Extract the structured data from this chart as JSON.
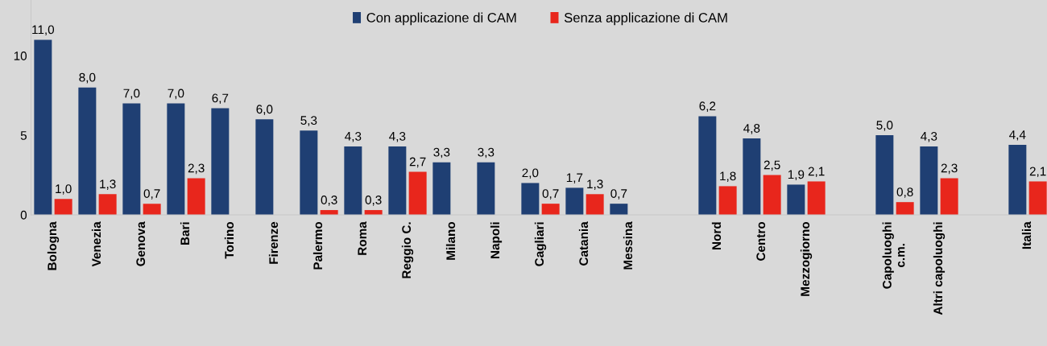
{
  "chart_data": {
    "type": "bar",
    "categories": [
      "Bologna",
      "Venezia",
      "Genova",
      "Bari",
      "Torino",
      "Firenze",
      "Palermo",
      "Roma",
      "Reggio C.",
      "Milano",
      "Napoli",
      "Cagliari",
      "Catania",
      "Messina",
      null,
      "Nord",
      "Centro",
      "Mezzogiorno",
      null,
      "Capoluoghi\nc.m.",
      "Altri capoluoghi",
      null,
      "Italia"
    ],
    "series": [
      {
        "name": "Con applicazione di CAM",
        "color": "#1f3f73",
        "values": [
          11.0,
          8.0,
          7.0,
          7.0,
          6.7,
          6.0,
          5.3,
          4.3,
          4.3,
          3.3,
          3.3,
          2.0,
          1.7,
          0.7,
          null,
          6.2,
          4.8,
          1.9,
          null,
          5.0,
          4.3,
          null,
          4.4
        ],
        "value_labels": [
          "11,0",
          "8,0",
          "7,0",
          "7,0",
          "6,7",
          "6,0",
          "5,3",
          "4,3",
          "4,3",
          "3,3",
          "3,3",
          "2,0",
          "1,7",
          "0,7",
          null,
          "6,2",
          "4,8",
          "1,9",
          null,
          "5,0",
          "4,3",
          null,
          "4,4"
        ]
      },
      {
        "name": "Senza applicazione di CAM",
        "color": "#e8261c",
        "values": [
          1.0,
          1.3,
          0.7,
          2.3,
          null,
          null,
          0.3,
          0.3,
          2.7,
          null,
          null,
          0.7,
          1.3,
          null,
          null,
          1.8,
          2.5,
          2.1,
          null,
          0.8,
          2.3,
          null,
          2.1
        ],
        "value_labels": [
          "1,0",
          "1,3",
          "0,7",
          "2,3",
          null,
          null,
          "0,3",
          "0,3",
          "2,7",
          null,
          null,
          "0,7",
          "1,3",
          null,
          null,
          "1,8",
          "2,5",
          "2,1",
          null,
          "0,8",
          "2,3",
          null,
          "2,1"
        ]
      }
    ],
    "ylim": [
      0,
      13.5
    ],
    "yticks": [
      0,
      5,
      10
    ],
    "grid": false,
    "legend": "top"
  }
}
